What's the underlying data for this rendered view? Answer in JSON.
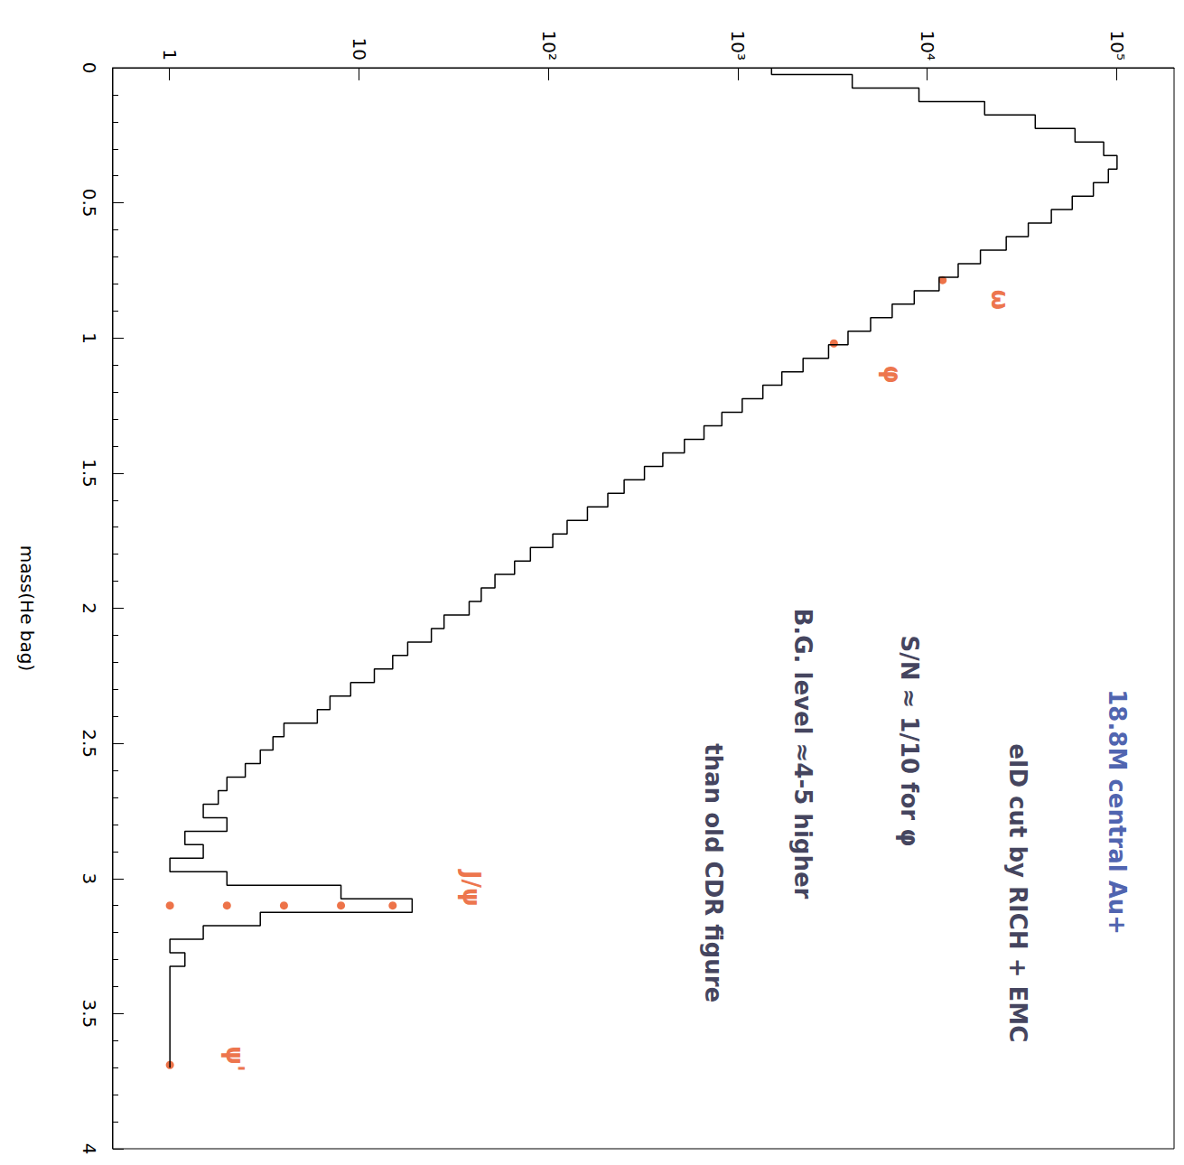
{
  "chart_data": {
    "type": "line",
    "x_label": "mass(He bag)",
    "x": [
      0.0,
      0.05,
      0.1,
      0.15,
      0.2,
      0.25,
      0.3,
      0.35,
      0.4,
      0.45,
      0.5,
      0.55,
      0.6,
      0.65,
      0.7,
      0.75,
      0.8,
      0.85,
      0.9,
      0.95,
      1.0,
      1.05,
      1.1,
      1.15,
      1.2,
      1.25,
      1.3,
      1.35,
      1.4,
      1.45,
      1.5,
      1.55,
      1.6,
      1.65,
      1.7,
      1.75,
      1.8,
      1.85,
      1.9,
      1.95,
      2.0,
      2.05,
      2.1,
      2.15,
      2.2,
      2.25,
      2.3,
      2.35,
      2.4,
      2.45,
      2.5,
      2.55,
      2.6,
      2.65,
      2.7,
      2.75,
      2.8,
      2.85,
      2.9,
      2.95,
      3.0,
      3.05,
      3.1,
      3.15,
      3.2,
      3.25,
      3.3,
      3.35,
      3.4,
      3.45,
      3.5,
      3.55,
      3.6,
      3.65,
      3.7
    ],
    "values": [
      1500,
      4000,
      9000,
      20000,
      37000,
      60000,
      85000,
      100000,
      90000,
      75000,
      58000,
      45000,
      34000,
      26000,
      19000,
      14500,
      11500,
      8500,
      6500,
      5000,
      3800,
      3000,
      2200,
      1700,
      1350,
      1050,
      820,
      660,
      520,
      400,
      320,
      250,
      205,
      160,
      125,
      105,
      80,
      66,
      52,
      44,
      38,
      28,
      24,
      18,
      15,
      12,
      9,
      7,
      6,
      4,
      3.5,
      3,
      2.5,
      2,
      1.8,
      1.5,
      2,
      1.2,
      1.5,
      1,
      2,
      8,
      19,
      3,
      1.5,
      1,
      1.2,
      1,
      1,
      1,
      1,
      1,
      1,
      1,
      1
    ],
    "color": "#000000",
    "line_style": "step",
    "xlim": [
      0,
      4
    ],
    "xticks": [
      0,
      0.5,
      1,
      1.5,
      2,
      2.5,
      3,
      3.5,
      4
    ],
    "ylim": [
      0.5,
      200000
    ],
    "yticks": [
      1,
      10,
      {
        "value": 100,
        "label": "10²"
      },
      {
        "value": 1000,
        "label": "10³"
      },
      {
        "value": 10000,
        "label": "10⁴"
      },
      {
        "value": 100000,
        "label": "10⁵"
      }
    ],
    "log": "y",
    "grid": false,
    "highlights": {
      "color": "#e8501c",
      "marker": "circle",
      "x": [
        0.786,
        1.02,
        3.1,
        3.1,
        3.1,
        3.1,
        3.1,
        3.69
      ],
      "y": [
        12000,
        3200,
        15,
        8,
        4,
        2,
        1,
        1
      ]
    },
    "annotations": [
      {
        "text": "18.8M central Au+",
        "x": 2.3,
        "y": 100000,
        "color": "#1f3a9a"
      },
      {
        "text": "eID cut by RICH + EMC",
        "x": 2.5,
        "y": 30000,
        "color": "#111133"
      },
      {
        "text": "S/N ≈ 1/10 for φ",
        "x": 2.1,
        "y": 8000,
        "color": "#111133"
      },
      {
        "text": "B.G. level ≈4-5 higher",
        "x": 2.0,
        "y": 2200,
        "color": "#111133"
      },
      {
        "text": "than old CDR figure",
        "x": 2.5,
        "y": 740,
        "color": "#111133"
      },
      {
        "text": "ω",
        "x": 0.82,
        "y": 24000,
        "color": "#e8501c"
      },
      {
        "text": "φ",
        "x": 1.1,
        "y": 6500,
        "color": "#e8501c"
      },
      {
        "text": "J/ψ",
        "x": 2.97,
        "y": 39,
        "color": "#e8501c"
      },
      {
        "text": "ψ'",
        "x": 3.62,
        "y": 2.2,
        "color": "#e8501c"
      }
    ]
  }
}
